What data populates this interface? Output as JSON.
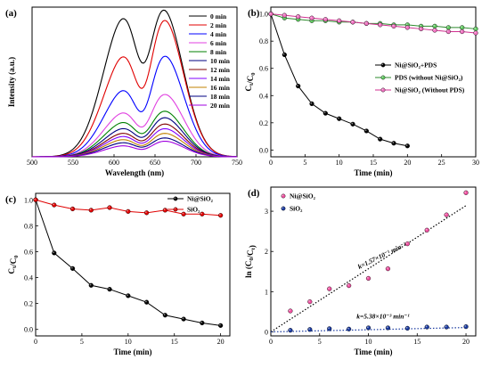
{
  "chart_data": [
    {
      "panel": "(a)",
      "type": "line",
      "xlabel": "Wavelength (nm)",
      "ylabel": "Intensity (a.u.)",
      "xlim": [
        500,
        750
      ],
      "xticks": [
        "500",
        "550",
        "600",
        "650",
        "700",
        "750"
      ],
      "yticks": [],
      "legend_position": "top-right",
      "grid": false,
      "series": [
        {
          "name": "0 min",
          "color": "#000000",
          "peak1": 0.9,
          "peak2": 0.9,
          "valley": 0.8
        },
        {
          "name": "2 min",
          "color": "#e00000",
          "peak1": 0.64,
          "peak2": 0.87,
          "valley": 0.56
        },
        {
          "name": "4 min",
          "color": "#0000ff",
          "peak1": 0.42,
          "peak2": 0.65,
          "valley": 0.36
        },
        {
          "name": "6 min",
          "color": "#e040e0",
          "peak1": 0.28,
          "peak2": 0.4,
          "valley": 0.24
        },
        {
          "name": "8 min",
          "color": "#008000",
          "peak1": 0.22,
          "peak2": 0.29,
          "valley": 0.19
        },
        {
          "name": "10 min",
          "color": "#000080",
          "peak1": 0.18,
          "peak2": 0.25,
          "valley": 0.16
        },
        {
          "name": "12 min",
          "color": "#800000",
          "peak1": 0.15,
          "peak2": 0.21,
          "valley": 0.13
        },
        {
          "name": "14 min",
          "color": "#8000ff",
          "peak1": 0.13,
          "peak2": 0.18,
          "valley": 0.11
        },
        {
          "name": "16 min",
          "color": "#c08000",
          "peak1": 0.11,
          "peak2": 0.15,
          "valley": 0.09
        },
        {
          "name": "18 min",
          "color": "#000080",
          "peak1": 0.09,
          "peak2": 0.12,
          "valley": 0.08
        },
        {
          "name": "20 min",
          "color": "#a000e0",
          "peak1": 0.07,
          "peak2": 0.1,
          "valley": 0.06
        }
      ]
    },
    {
      "panel": "(b)",
      "type": "line",
      "xlabel": "Time (min)",
      "ylabel": "C_t/C_0",
      "xlim": [
        0,
        30
      ],
      "ylim": [
        -0.05,
        1.05
      ],
      "xticks": [
        "0",
        "5",
        "10",
        "15",
        "20",
        "25",
        "30"
      ],
      "yticks": [
        "0.0",
        "0.2",
        "0.4",
        "0.6",
        "0.8",
        "1.0"
      ],
      "legend_position": "center-right",
      "grid": false,
      "series": [
        {
          "name": "Ni@SiO₂+PDS",
          "color": "#000000",
          "marker": "#000000",
          "x": [
            0,
            2,
            4,
            6,
            8,
            10,
            12,
            14,
            16,
            18,
            20
          ],
          "y": [
            1.0,
            0.7,
            0.47,
            0.34,
            0.27,
            0.23,
            0.19,
            0.14,
            0.08,
            0.05,
            0.03
          ]
        },
        {
          "name": "PDS (without Ni@SiO₂)",
          "color": "#2e8b2e",
          "marker": "#5ec85e",
          "x": [
            0,
            2,
            4,
            6,
            8,
            10,
            12,
            14,
            16,
            18,
            20,
            22,
            24,
            26,
            28,
            30
          ],
          "y": [
            1.0,
            0.97,
            0.96,
            0.95,
            0.95,
            0.94,
            0.94,
            0.93,
            0.93,
            0.92,
            0.92,
            0.91,
            0.91,
            0.9,
            0.9,
            0.89
          ]
        },
        {
          "name": "Ni@SiO₂ (Without PDS)",
          "color": "#d03090",
          "marker": "#f070c0",
          "x": [
            0,
            2,
            4,
            6,
            8,
            10,
            12,
            14,
            16,
            18,
            20,
            22,
            24,
            26,
            28,
            30
          ],
          "y": [
            1.0,
            0.99,
            0.98,
            0.97,
            0.96,
            0.95,
            0.94,
            0.93,
            0.92,
            0.91,
            0.9,
            0.89,
            0.88,
            0.87,
            0.87,
            0.86
          ]
        }
      ]
    },
    {
      "panel": "(c)",
      "type": "line",
      "xlabel": "Time (min)",
      "ylabel": "C_t/C_0",
      "xlim": [
        0,
        21
      ],
      "ylim": [
        -0.05,
        1.05
      ],
      "xticks": [
        "0",
        "5",
        "10",
        "15",
        "20"
      ],
      "yticks": [
        "0.0",
        "0.2",
        "0.4",
        "0.6",
        "0.8",
        "1.0"
      ],
      "legend_position": "top-right",
      "grid": false,
      "series": [
        {
          "name": "Ni@SiO₂",
          "color": "#000000",
          "marker": "#000000",
          "x": [
            0,
            2,
            4,
            6,
            8,
            10,
            12,
            14,
            16,
            18,
            20
          ],
          "y": [
            1.0,
            0.59,
            0.47,
            0.34,
            0.31,
            0.26,
            0.21,
            0.11,
            0.08,
            0.05,
            0.03
          ]
        },
        {
          "name": "SiO₂",
          "color": "#e00000",
          "marker": "#e00000",
          "x": [
            0,
            2,
            4,
            6,
            8,
            10,
            12,
            14,
            16,
            18,
            20
          ],
          "y": [
            1.0,
            0.96,
            0.93,
            0.92,
            0.94,
            0.91,
            0.9,
            0.92,
            0.89,
            0.89,
            0.88
          ]
        }
      ]
    },
    {
      "panel": "(d)",
      "type": "scatter",
      "xlabel": "Time (min)",
      "ylabel": "ln (C_0/C_t)",
      "xlim": [
        0,
        21
      ],
      "ylim": [
        -0.1,
        3.6
      ],
      "xticks": [
        "0",
        "5",
        "10",
        "15",
        "20"
      ],
      "yticks": [
        "0",
        "1",
        "2",
        "3"
      ],
      "legend_position": "top-left",
      "grid": false,
      "annotations": [
        {
          "text": "k=1.57×10⁻¹ min⁻¹",
          "color": "#e0206e"
        },
        {
          "text": "k=5.38×10⁻³ min⁻¹",
          "color": "#1a3aa0"
        }
      ],
      "series": [
        {
          "name": "Ni@SiO₂",
          "color": "#f050a0",
          "x": [
            2,
            4,
            6,
            8,
            10,
            12,
            14,
            16,
            18,
            20
          ],
          "y": [
            0.52,
            0.75,
            1.07,
            1.15,
            1.33,
            1.57,
            2.19,
            2.53,
            2.91,
            3.46
          ],
          "fit": [
            0,
            3.14
          ]
        },
        {
          "name": "SiO₂",
          "color": "#1a3aa0",
          "x": [
            2,
            4,
            6,
            8,
            10,
            12,
            14,
            16,
            18,
            20
          ],
          "y": [
            0.04,
            0.06,
            0.08,
            0.07,
            0.1,
            0.1,
            0.09,
            0.12,
            0.12,
            0.13
          ],
          "fit": [
            0,
            0.108
          ]
        }
      ]
    }
  ]
}
